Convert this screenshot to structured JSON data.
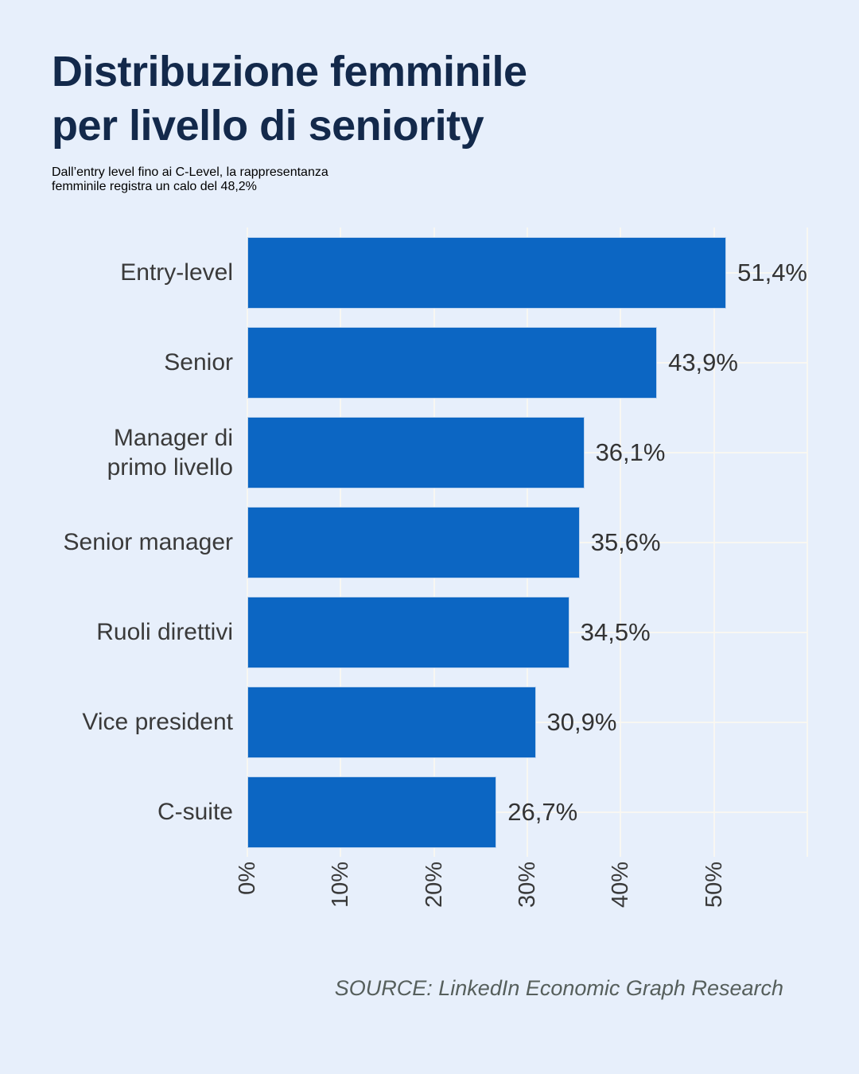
{
  "page": {
    "background": "#E7EFFB",
    "title_color": "#13294B",
    "title_line1": "Distribuzione femminile",
    "title_line2": "per livello di seniority",
    "subtitle_line1": "Dall’entry level fino ai C-Level, la rappresentanza",
    "subtitle_line2": "femminile registra un calo del 48,2%",
    "source": "SOURCE: LinkedIn Economic Graph Research"
  },
  "chart_data": {
    "type": "bar",
    "orientation": "horizontal",
    "title": "Distribuzione femminile per livello di seniority",
    "categories": [
      "Entry-level",
      "Senior",
      "Manager di primo livello",
      "Senior manager",
      "Ruoli direttivi",
      "Vice president",
      "C-suite"
    ],
    "values": [
      51.4,
      43.9,
      36.1,
      35.6,
      34.5,
      30.9,
      26.7
    ],
    "value_labels": [
      "51,4%",
      "43,9%",
      "36,1%",
      "35,6%",
      "34,5%",
      "30,9%",
      "26,7%"
    ],
    "x_tick_labels": [
      "0%",
      "10%",
      "20%",
      "30%",
      "40%",
      "50%"
    ],
    "x_tick_values": [
      0,
      10,
      20,
      30,
      40,
      50
    ],
    "xlim": [
      0,
      60
    ],
    "grid": true,
    "grid_values": [
      0,
      10,
      20,
      30,
      40,
      50,
      60
    ],
    "bar_color": "#0C66C3",
    "label_color": "#3A3A3A",
    "legend": "none"
  }
}
